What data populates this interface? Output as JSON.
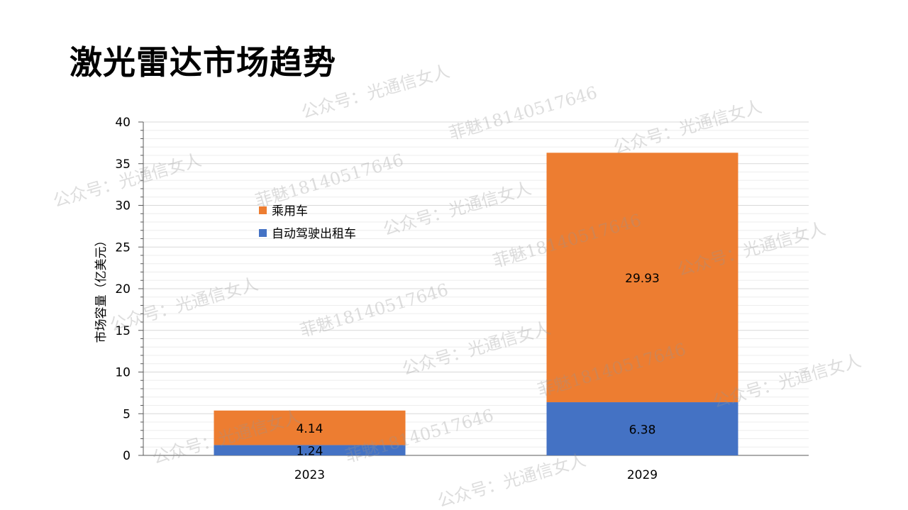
{
  "slide": {
    "title": "激光雷达市场趋势"
  },
  "colors": {
    "series_0": "#4472C4",
    "series_1": "#ED7D31",
    "gridline": "#d9d9d9",
    "axis": "#595959",
    "text": "#000000"
  },
  "chart_data": {
    "type": "bar",
    "stacked": true,
    "title": "",
    "xlabel": "",
    "ylabel": "市场容量（亿美元）",
    "ylim": [
      0,
      40
    ],
    "yticks": [
      0,
      5,
      10,
      15,
      20,
      25,
      30,
      35,
      40
    ],
    "categories": [
      "2023",
      "2029"
    ],
    "series": [
      {
        "name": "自动驾驶出租车",
        "values": [
          1.24,
          6.38
        ]
      },
      {
        "name": "乘用车",
        "values": [
          4.14,
          29.93
        ]
      }
    ],
    "data_labels": [
      [
        "1.24",
        "6.38"
      ],
      [
        "4.14",
        "29.93"
      ]
    ],
    "legend_position": "upper-left inside plot",
    "grid": true
  },
  "watermarks": {
    "texts": [
      "公众号：光通信女人",
      "菲魅18140517646"
    ]
  }
}
